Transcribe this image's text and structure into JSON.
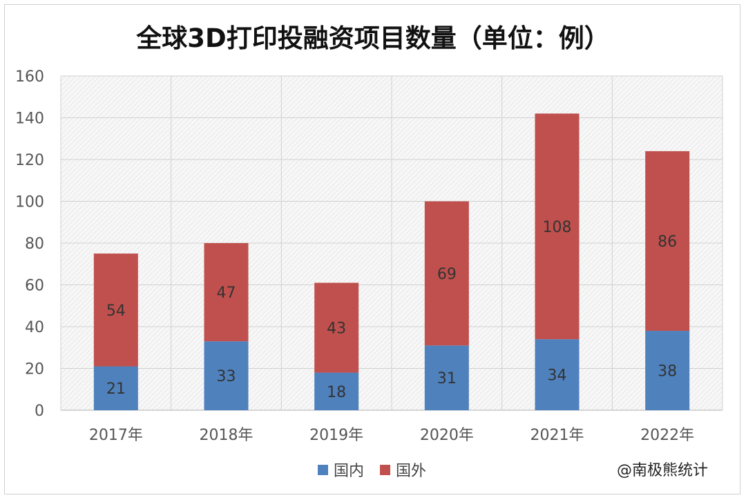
{
  "chart_data": {
    "type": "bar",
    "stacked": true,
    "title": "全球3D打印投融资项目数量（单位：例）",
    "categories": [
      "2017年",
      "2018年",
      "2019年",
      "2020年",
      "2021年",
      "2022年"
    ],
    "series": [
      {
        "name": "国内",
        "values": [
          21,
          33,
          18,
          31,
          34,
          38
        ],
        "color": "#4f81bd"
      },
      {
        "name": "国外",
        "values": [
          54,
          47,
          43,
          69,
          108,
          86
        ],
        "color": "#c0504d"
      }
    ],
    "ylim": [
      0,
      160
    ],
    "yticks": [
      "0",
      "20",
      "40",
      "60",
      "80",
      "100",
      "120",
      "140",
      "160"
    ],
    "grid": true,
    "legend": "bottom"
  },
  "credit": "@南极熊统计"
}
